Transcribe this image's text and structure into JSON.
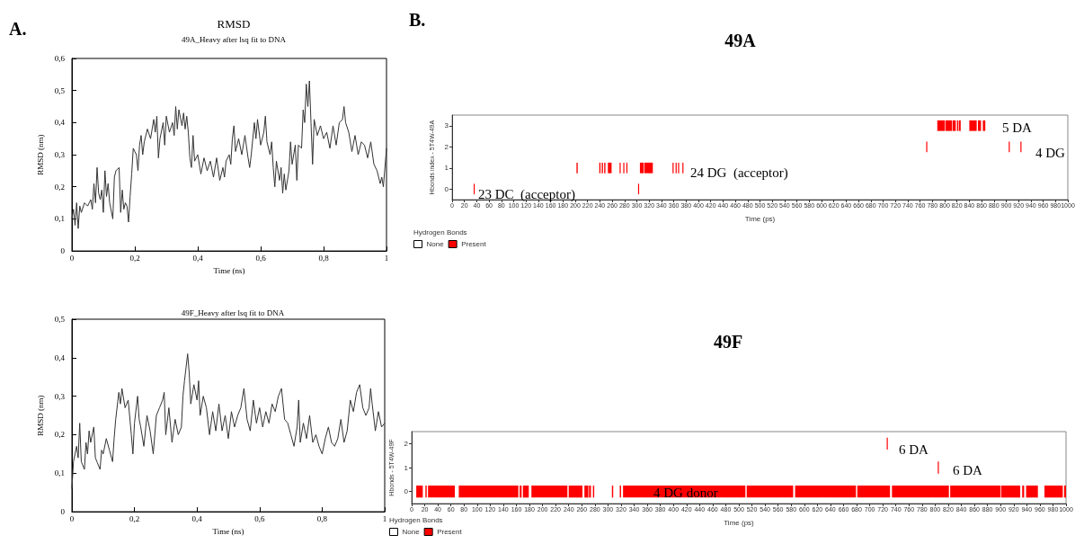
{
  "chart_data": [
    {
      "type": "line",
      "title": "RMSD",
      "subtitle": "49A_Heavy after lsq fit to DNA",
      "xlabel": "Time (ns)",
      "ylabel": "RMSD (nm)",
      "annotations": [
        "A."
      ],
      "marker": "none",
      "line_style": "solid",
      "grid": false,
      "xlim": [
        0,
        1
      ],
      "xticks": [
        {
          "value": 0,
          "label": "0"
        },
        {
          "value": 0.2,
          "label": "0,2"
        },
        {
          "value": 0.4,
          "label": "0,4"
        },
        {
          "value": 0.6,
          "label": "0,6"
        },
        {
          "value": 0.8,
          "label": "0,8"
        },
        {
          "value": 1,
          "label": "1"
        }
      ],
      "ylim": [
        0,
        0.6
      ],
      "yticks": [
        {
          "value": 0,
          "label": "0"
        },
        {
          "value": 0.1,
          "label": "0,1"
        },
        {
          "value": 0.2,
          "label": "0,2"
        },
        {
          "value": 0.3,
          "label": "0,3"
        },
        {
          "value": 0.4,
          "label": "0,4"
        },
        {
          "value": 0.5,
          "label": "0,5"
        },
        {
          "value": 0.6,
          "label": "0,6"
        }
      ],
      "x": [
        0,
        0.005,
        0.01,
        0.015,
        0.02,
        0.025,
        0.03,
        0.04,
        0.05,
        0.06,
        0.065,
        0.07,
        0.075,
        0.08,
        0.085,
        0.09,
        0.095,
        0.1,
        0.105,
        0.11,
        0.115,
        0.12,
        0.13,
        0.135,
        0.14,
        0.15,
        0.155,
        0.16,
        0.165,
        0.17,
        0.175,
        0.18,
        0.185,
        0.19,
        0.195,
        0.2,
        0.205,
        0.21,
        0.215,
        0.22,
        0.225,
        0.23,
        0.24,
        0.25,
        0.26,
        0.265,
        0.27,
        0.275,
        0.28,
        0.29,
        0.295,
        0.3,
        0.31,
        0.32,
        0.325,
        0.33,
        0.335,
        0.34,
        0.35,
        0.355,
        0.36,
        0.365,
        0.37,
        0.375,
        0.38,
        0.385,
        0.39,
        0.4,
        0.41,
        0.42,
        0.43,
        0.44,
        0.45,
        0.46,
        0.47,
        0.48,
        0.485,
        0.49,
        0.5,
        0.505,
        0.51,
        0.515,
        0.52,
        0.53,
        0.54,
        0.55,
        0.56,
        0.565,
        0.57,
        0.58,
        0.585,
        0.59,
        0.6,
        0.61,
        0.615,
        0.62,
        0.63,
        0.635,
        0.64,
        0.645,
        0.65,
        0.66,
        0.665,
        0.67,
        0.675,
        0.68,
        0.69,
        0.695,
        0.7,
        0.71,
        0.715,
        0.72,
        0.73,
        0.735,
        0.74,
        0.745,
        0.75,
        0.755,
        0.76,
        0.765,
        0.77,
        0.78,
        0.79,
        0.8,
        0.81,
        0.82,
        0.83,
        0.84,
        0.85,
        0.86,
        0.865,
        0.87,
        0.88,
        0.89,
        0.9,
        0.91,
        0.92,
        0.93,
        0.94,
        0.95,
        0.96,
        0.97,
        0.98,
        0.985,
        0.99,
        1
      ],
      "series": [
        {
          "color": "#333333",
          "values": [
            0.1,
            0.13,
            0.08,
            0.15,
            0.07,
            0.14,
            0.12,
            0.15,
            0.14,
            0.16,
            0.13,
            0.21,
            0.15,
            0.26,
            0.18,
            0.16,
            0.19,
            0.12,
            0.25,
            0.17,
            0.21,
            0.15,
            0.1,
            0.23,
            0.25,
            0.26,
            0.12,
            0.19,
            0.13,
            0.15,
            0.14,
            0.09,
            0.17,
            0.24,
            0.32,
            0.31,
            0.3,
            0.25,
            0.33,
            0.36,
            0.3,
            0.34,
            0.38,
            0.35,
            0.41,
            0.37,
            0.42,
            0.29,
            0.35,
            0.4,
            0.33,
            0.42,
            0.37,
            0.4,
            0.36,
            0.45,
            0.38,
            0.44,
            0.39,
            0.43,
            0.38,
            0.42,
            0.37,
            0.29,
            0.26,
            0.36,
            0.28,
            0.3,
            0.24,
            0.29,
            0.25,
            0.28,
            0.23,
            0.29,
            0.22,
            0.26,
            0.23,
            0.28,
            0.3,
            0.27,
            0.35,
            0.39,
            0.31,
            0.35,
            0.3,
            0.36,
            0.29,
            0.26,
            0.3,
            0.4,
            0.35,
            0.41,
            0.33,
            0.37,
            0.42,
            0.34,
            0.3,
            0.34,
            0.26,
            0.2,
            0.28,
            0.22,
            0.26,
            0.18,
            0.24,
            0.19,
            0.25,
            0.34,
            0.27,
            0.33,
            0.22,
            0.33,
            0.32,
            0.44,
            0.4,
            0.52,
            0.45,
            0.53,
            0.4,
            0.27,
            0.41,
            0.36,
            0.39,
            0.35,
            0.37,
            0.32,
            0.39,
            0.33,
            0.4,
            0.41,
            0.45,
            0.4,
            0.37,
            0.31,
            0.36,
            0.3,
            0.34,
            0.33,
            0.29,
            0.34,
            0.27,
            0.25,
            0.21,
            0.23,
            0.2,
            0.32
          ]
        }
      ]
    },
    {
      "type": "line",
      "title": "49F_Heavy after lsq fit to DNA",
      "xlabel": "Time (ns)",
      "ylabel": "RMSD (nm)",
      "marker": "none",
      "line_style": "solid",
      "grid": false,
      "xlim": [
        0,
        1
      ],
      "xticks": [
        {
          "value": 0,
          "label": "0"
        },
        {
          "value": 0.2,
          "label": "0,2"
        },
        {
          "value": 0.4,
          "label": "0,4"
        },
        {
          "value": 0.6,
          "label": "0,6"
        },
        {
          "value": 0.8,
          "label": "0,8"
        },
        {
          "value": 1,
          "label": "1"
        }
      ],
      "ylim": [
        0,
        0.5
      ],
      "yticks": [
        {
          "value": 0,
          "label": "0"
        },
        {
          "value": 0.1,
          "label": "0,1"
        },
        {
          "value": 0.2,
          "label": "0,2"
        },
        {
          "value": 0.3,
          "label": "0,3"
        },
        {
          "value": 0.4,
          "label": "0,4"
        },
        {
          "value": 0.5,
          "label": "0,5"
        }
      ],
      "x": [
        0,
        0.005,
        0.01,
        0.015,
        0.02,
        0.025,
        0.03,
        0.04,
        0.045,
        0.05,
        0.055,
        0.06,
        0.07,
        0.075,
        0.08,
        0.09,
        0.095,
        0.1,
        0.11,
        0.12,
        0.13,
        0.135,
        0.14,
        0.15,
        0.155,
        0.16,
        0.17,
        0.18,
        0.19,
        0.195,
        0.2,
        0.21,
        0.215,
        0.22,
        0.23,
        0.24,
        0.25,
        0.26,
        0.27,
        0.28,
        0.29,
        0.295,
        0.3,
        0.31,
        0.32,
        0.33,
        0.34,
        0.35,
        0.355,
        0.36,
        0.37,
        0.375,
        0.38,
        0.39,
        0.4,
        0.405,
        0.41,
        0.42,
        0.43,
        0.44,
        0.45,
        0.46,
        0.47,
        0.48,
        0.49,
        0.5,
        0.51,
        0.52,
        0.53,
        0.54,
        0.55,
        0.56,
        0.57,
        0.58,
        0.59,
        0.6,
        0.61,
        0.62,
        0.63,
        0.64,
        0.65,
        0.66,
        0.67,
        0.68,
        0.69,
        0.7,
        0.71,
        0.72,
        0.725,
        0.73,
        0.74,
        0.75,
        0.76,
        0.77,
        0.78,
        0.79,
        0.8,
        0.81,
        0.82,
        0.83,
        0.84,
        0.85,
        0.86,
        0.87,
        0.88,
        0.89,
        0.9,
        0.91,
        0.92,
        0.93,
        0.94,
        0.95,
        0.955,
        0.96,
        0.97,
        0.98,
        0.99,
        1
      ],
      "series": [
        {
          "color": "#333333",
          "values": [
            0.06,
            0.13,
            0.15,
            0.17,
            0.14,
            0.23,
            0.13,
            0.11,
            0.18,
            0.15,
            0.21,
            0.18,
            0.22,
            0.14,
            0.13,
            0.11,
            0.16,
            0.15,
            0.19,
            0.16,
            0.13,
            0.19,
            0.24,
            0.31,
            0.28,
            0.32,
            0.27,
            0.29,
            0.2,
            0.15,
            0.23,
            0.3,
            0.24,
            0.22,
            0.17,
            0.25,
            0.21,
            0.15,
            0.25,
            0.27,
            0.29,
            0.31,
            0.2,
            0.27,
            0.18,
            0.24,
            0.2,
            0.22,
            0.3,
            0.34,
            0.41,
            0.36,
            0.28,
            0.33,
            0.29,
            0.34,
            0.25,
            0.3,
            0.27,
            0.2,
            0.26,
            0.21,
            0.28,
            0.21,
            0.25,
            0.19,
            0.26,
            0.22,
            0.25,
            0.27,
            0.32,
            0.24,
            0.21,
            0.29,
            0.23,
            0.27,
            0.22,
            0.26,
            0.23,
            0.28,
            0.26,
            0.3,
            0.32,
            0.24,
            0.23,
            0.2,
            0.17,
            0.22,
            0.29,
            0.18,
            0.23,
            0.19,
            0.25,
            0.18,
            0.2,
            0.17,
            0.15,
            0.19,
            0.22,
            0.18,
            0.17,
            0.19,
            0.24,
            0.18,
            0.21,
            0.29,
            0.26,
            0.31,
            0.33,
            0.27,
            0.25,
            0.27,
            0.32,
            0.28,
            0.21,
            0.26,
            0.22,
            0.23
          ]
        }
      ]
    },
    {
      "type": "bar",
      "orientation": "horizontal",
      "title": "49A",
      "xlabel": "Time (ps)",
      "ylabel": "Hbonds index - 5T4W-49A",
      "legend_title": "Hydrogen Bonds",
      "legend": "bottom left",
      "grid": false,
      "annotations": [
        "B.",
        "23 DC  (acceptor)",
        "24 DG  (acceptor)",
        "5 DA",
        "4 DG"
      ],
      "categories": [
        "3",
        "2",
        "1",
        "0"
      ],
      "xlim": [
        0,
        1000
      ],
      "xticks": [
        0,
        20,
        40,
        60,
        80,
        100,
        120,
        140,
        160,
        180,
        200,
        220,
        240,
        260,
        280,
        300,
        320,
        340,
        360,
        380,
        400,
        420,
        440,
        460,
        480,
        500,
        520,
        540,
        560,
        580,
        600,
        620,
        640,
        660,
        680,
        700,
        720,
        740,
        760,
        780,
        800,
        820,
        840,
        860,
        880,
        900,
        920,
        940,
        960,
        980,
        1000
      ],
      "series": [
        {
          "name": "None",
          "color": "#ffffff",
          "values": [
            null,
            null,
            null,
            null
          ],
          "base": [
            null,
            null,
            null,
            null
          ]
        },
        {
          "name": "Present",
          "color": "#ff0000",
          "values": [
            12,
            1,
            2,
            1
          ],
          "base": [
            788,
            770,
            202,
            35
          ]
        },
        {
          "color": "#ff0000",
          "values": [
            11,
            1,
            2,
            1
          ],
          "base": [
            801,
            904,
            239,
            302
          ]
        },
        {
          "color": "#ff0000",
          "values": [
            5,
            1,
            2,
            null
          ],
          "base": [
            813,
            923,
            243,
            null
          ]
        },
        {
          "color": "#ff0000",
          "values": [
            2,
            null,
            2,
            null
          ],
          "base": [
            820,
            null,
            247,
            null
          ]
        },
        {
          "color": "#ff0000",
          "values": [
            3,
            null,
            6,
            null
          ],
          "base": [
            823,
            null,
            253,
            null
          ]
        },
        {
          "color": "#ff0000",
          "values": [
            12,
            null,
            1,
            null
          ],
          "base": [
            840,
            null,
            272,
            null
          ]
        },
        {
          "color": "#ff0000",
          "values": [
            5,
            null,
            1,
            null
          ],
          "base": [
            854,
            null,
            278,
            null
          ]
        },
        {
          "color": "#ff0000",
          "values": [
            4,
            null,
            1,
            null
          ],
          "base": [
            862,
            null,
            283,
            null
          ]
        },
        {
          "color": "#ff0000",
          "values": [
            null,
            null,
            6,
            null
          ],
          "base": [
            null,
            null,
            305,
            null
          ]
        },
        {
          "color": "#ff0000",
          "values": [
            null,
            null,
            14,
            null
          ],
          "base": [
            null,
            null,
            312,
            null
          ]
        },
        {
          "color": "#ff0000",
          "values": [
            null,
            null,
            1,
            null
          ],
          "base": [
            null,
            null,
            358,
            null
          ]
        },
        {
          "color": "#ff0000",
          "values": [
            null,
            null,
            1,
            null
          ],
          "base": [
            null,
            null,
            363,
            null
          ]
        },
        {
          "color": "#ff0000",
          "values": [
            null,
            null,
            1,
            null
          ],
          "base": [
            null,
            null,
            367,
            null
          ]
        },
        {
          "color": "#ff0000",
          "values": [
            null,
            null,
            1,
            null
          ],
          "base": [
            null,
            null,
            374,
            null
          ]
        }
      ]
    },
    {
      "type": "bar",
      "orientation": "horizontal",
      "title": "49F",
      "xlabel": "Time (ps)",
      "ylabel": "Hbonds - 5T4W-49F",
      "legend_title": "Hydrogen Bonds",
      "legend": "bottom left",
      "grid": false,
      "annotations": [
        "4 DG donor",
        "6 DA",
        "6 DA"
      ],
      "categories": [
        "2",
        "1",
        "0"
      ],
      "xlim": [
        0,
        1000
      ],
      "xticks": [
        0,
        20,
        40,
        60,
        80,
        100,
        120,
        140,
        160,
        180,
        200,
        220,
        240,
        260,
        280,
        300,
        320,
        340,
        360,
        380,
        400,
        420,
        440,
        460,
        480,
        500,
        520,
        540,
        560,
        580,
        600,
        620,
        640,
        660,
        680,
        700,
        720,
        740,
        760,
        780,
        800,
        820,
        840,
        860,
        880,
        900,
        920,
        940,
        960,
        980,
        1000
      ],
      "series": [
        {
          "name": "None",
          "color": "#ffffff",
          "values": [
            null,
            null,
            null
          ],
          "base": [
            null,
            null,
            null
          ]
        },
        {
          "name": "Present",
          "color": "#ff0000",
          "values": [
            1,
            1,
            10
          ],
          "base": [
            726,
            804,
            7
          ]
        },
        {
          "color": "#ff0000",
          "values": [
            null,
            null,
            2
          ],
          "base": [
            null,
            null,
            21
          ]
        },
        {
          "color": "#ff0000",
          "values": [
            null,
            null,
            41
          ],
          "base": [
            null,
            null,
            25
          ]
        },
        {
          "color": "#ff0000",
          "values": [
            null,
            null,
            91
          ],
          "base": [
            null,
            null,
            72
          ]
        },
        {
          "color": "#ff0000",
          "values": [
            null,
            null,
            3
          ],
          "base": [
            null,
            null,
            165
          ]
        },
        {
          "color": "#ff0000",
          "values": [
            null,
            null,
            9
          ],
          "base": [
            null,
            null,
            170
          ]
        },
        {
          "color": "#ff0000",
          "values": [
            null,
            null,
            55
          ],
          "base": [
            null,
            null,
            183
          ]
        },
        {
          "color": "#ff0000",
          "values": [
            null,
            null,
            21
          ],
          "base": [
            null,
            null,
            240
          ]
        },
        {
          "color": "#ff0000",
          "values": [
            null,
            null,
            6
          ],
          "base": [
            null,
            null,
            264
          ]
        },
        {
          "color": "#ff0000",
          "values": [
            null,
            null,
            3
          ],
          "base": [
            null,
            null,
            271
          ]
        },
        {
          "color": "#ff0000",
          "values": [
            null,
            null,
            2
          ],
          "base": [
            null,
            null,
            277
          ]
        },
        {
          "color": "#ff0000",
          "values": [
            null,
            null,
            2
          ],
          "base": [
            null,
            null,
            306
          ]
        },
        {
          "color": "#ff0000",
          "values": [
            null,
            null,
            2
          ],
          "base": [
            null,
            null,
            318
          ]
        },
        {
          "color": "#ff0000",
          "values": [
            null,
            null,
            187
          ],
          "base": [
            null,
            null,
            323
          ]
        },
        {
          "color": "#ff0000",
          "values": [
            null,
            null,
            71
          ],
          "base": [
            null,
            null,
            512
          ]
        },
        {
          "color": "#ff0000",
          "values": [
            null,
            null,
            93
          ],
          "base": [
            null,
            null,
            586
          ]
        },
        {
          "color": "#ff0000",
          "values": [
            null,
            null,
            50
          ],
          "base": [
            null,
            null,
            681
          ]
        },
        {
          "color": "#ff0000",
          "values": [
            null,
            null,
            87
          ],
          "base": [
            null,
            null,
            734
          ]
        },
        {
          "color": "#ff0000",
          "values": [
            null,
            null,
            77
          ],
          "base": [
            null,
            null,
            823
          ]
        },
        {
          "color": "#ff0000",
          "values": [
            null,
            null,
            29
          ],
          "base": [
            null,
            null,
            901
          ]
        },
        {
          "color": "#ff0000",
          "values": [
            null,
            null,
            3
          ],
          "base": [
            null,
            null,
            933
          ]
        },
        {
          "color": "#ff0000",
          "values": [
            null,
            null,
            18
          ],
          "base": [
            null,
            null,
            939
          ]
        },
        {
          "color": "#ff0000",
          "values": [
            null,
            null,
            28
          ],
          "base": [
            null,
            null,
            967
          ]
        },
        {
          "color": "#ff0000",
          "values": [
            null,
            null,
            3
          ],
          "base": [
            null,
            null,
            997
          ]
        }
      ]
    }
  ]
}
